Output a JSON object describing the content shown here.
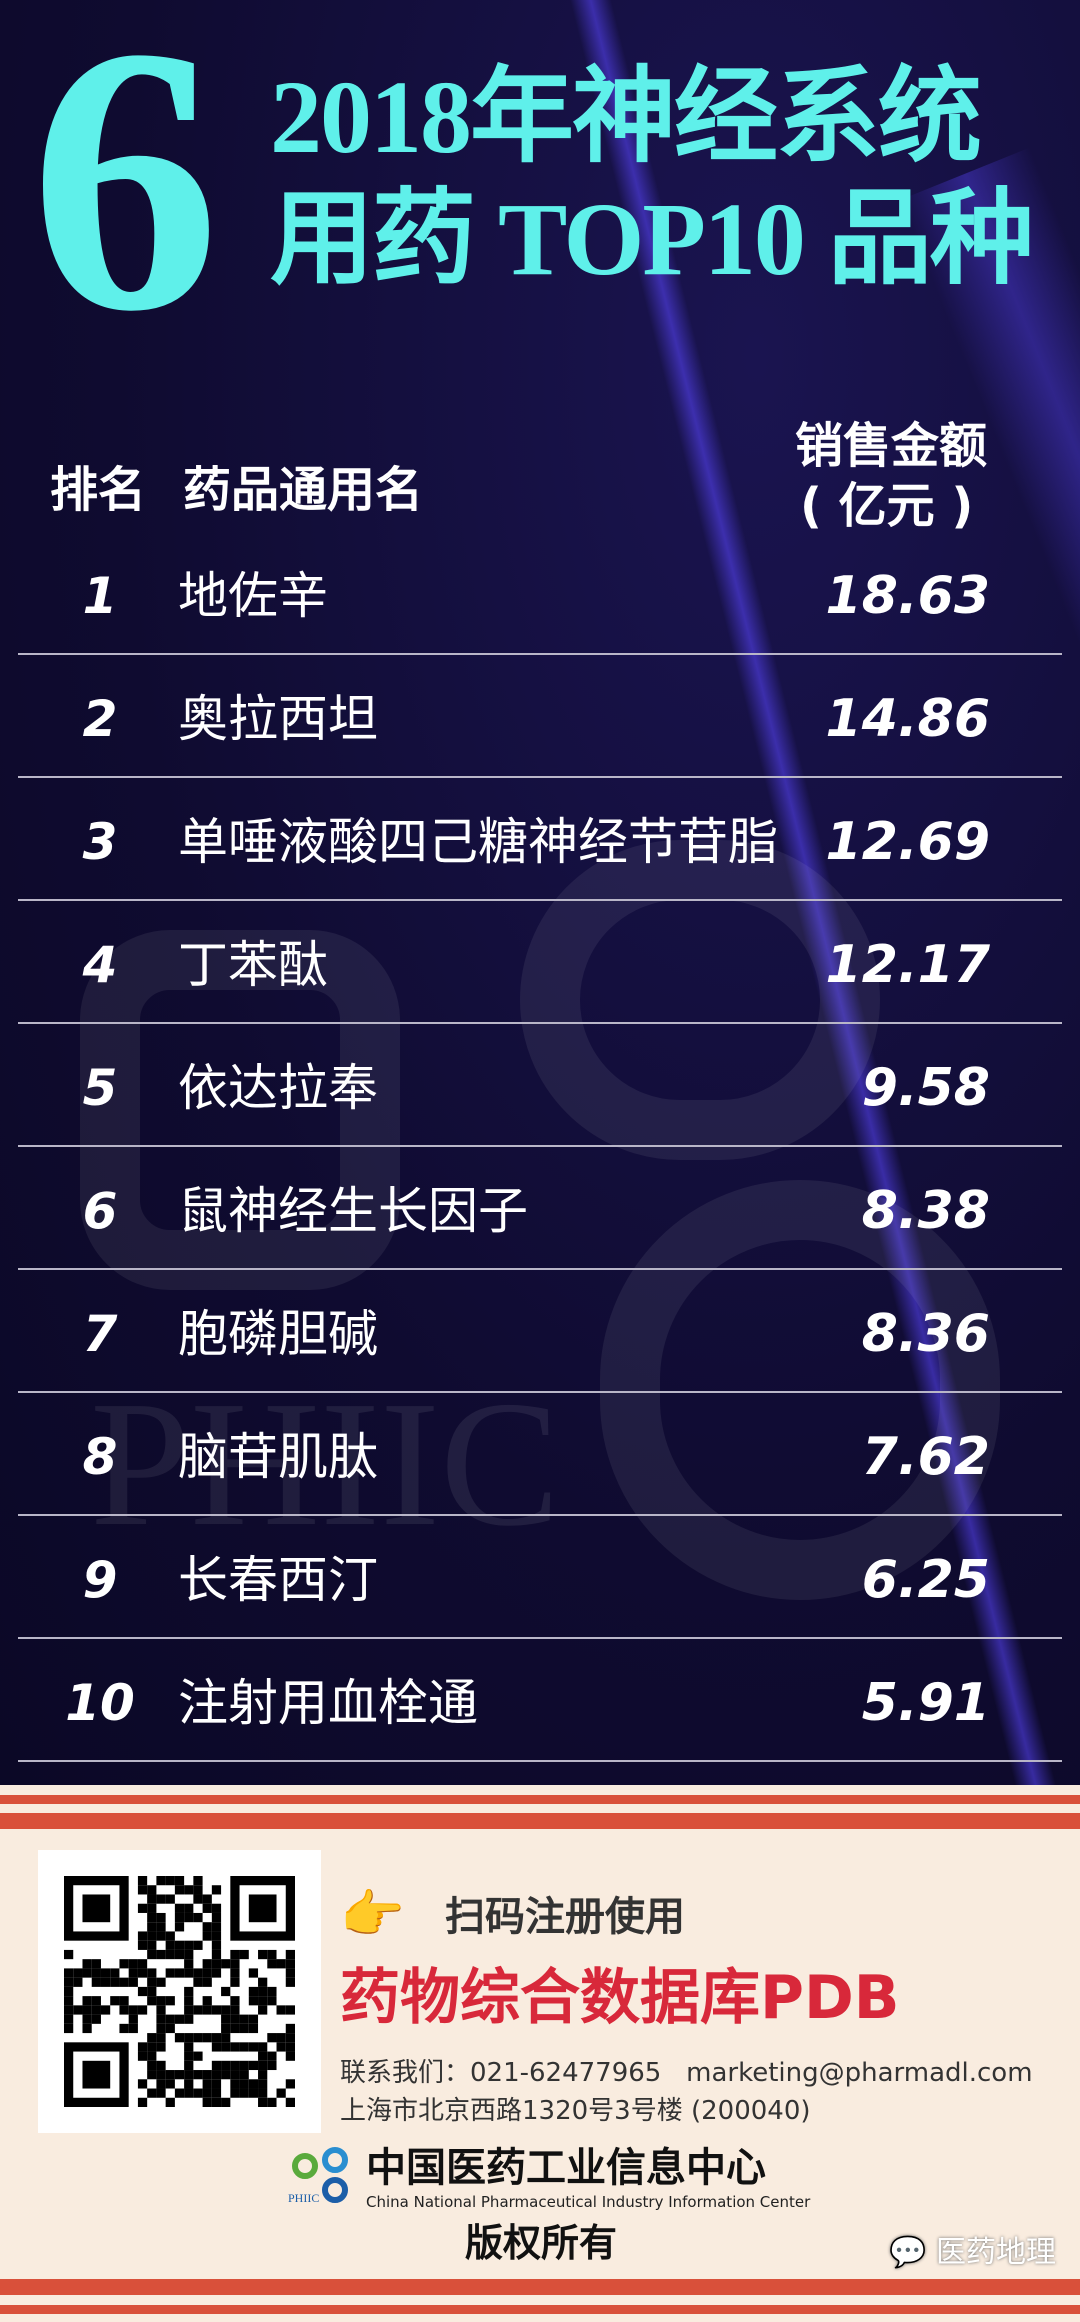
{
  "title": {
    "number": "6",
    "line1": "2018年神经系统",
    "line2": "用药 TOP10 品种"
  },
  "table": {
    "headers": {
      "rank": "排名",
      "name": "药品通用名",
      "sales_line1": "销售金额",
      "sales_line2": "( 亿元 )"
    },
    "rows": [
      {
        "rank": "1",
        "name": "地佐辛",
        "sales": "18.63"
      },
      {
        "rank": "2",
        "name": "奥拉西坦",
        "sales": "14.86"
      },
      {
        "rank": "3",
        "name": "单唾液酸四己糖神经节苷脂",
        "sales": "12.69"
      },
      {
        "rank": "4",
        "name": "丁苯酞",
        "sales": "12.17"
      },
      {
        "rank": "5",
        "name": "依达拉奉",
        "sales": "9.58"
      },
      {
        "rank": "6",
        "name": "鼠神经生长因子",
        "sales": "8.38"
      },
      {
        "rank": "7",
        "name": "胞磷胆碱",
        "sales": "8.36"
      },
      {
        "rank": "8",
        "name": "脑苷肌肽",
        "sales": "7.62"
      },
      {
        "rank": "9",
        "name": "长春西汀",
        "sales": "6.25"
      },
      {
        "rank": "10",
        "name": "注射用血栓通",
        "sales": "5.91"
      }
    ]
  },
  "watermark": {
    "text": "PHIIC"
  },
  "footer": {
    "scan_label": "扫码注册使用",
    "product": "药物综合数据库PDB",
    "contact": "联系我们：021-62477965   marketing@pharmadl.com",
    "address": "上海市北京西路1320号3号楼 (200040)",
    "org_cn": "中国医药工业信息中心",
    "org_en": "China National Pharmaceutical Industry Information Center",
    "org_logo": "PHIIC",
    "copyright": "版权所有",
    "wechat_source": "医药地理"
  },
  "colors": {
    "title": "#5ff0ea",
    "background": "#0f0b30",
    "stripe": "#d9503a",
    "product": "#d8283a"
  }
}
